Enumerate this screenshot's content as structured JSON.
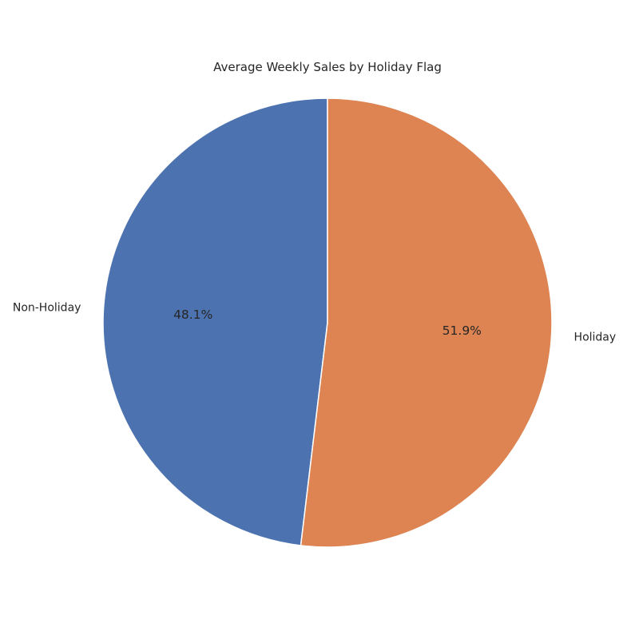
{
  "chart_data": {
    "type": "pie",
    "title": "Average Weekly Sales by Holiday Flag",
    "categories": [
      "Non-Holiday",
      "Holiday"
    ],
    "values": [
      48.1,
      51.9
    ],
    "percent_labels": [
      "48.1%",
      "51.9%"
    ],
    "colors": [
      "#4c72b0",
      "#dd8452"
    ],
    "start_angle_deg": 90,
    "direction": "counterclockwise",
    "legend": "none"
  }
}
